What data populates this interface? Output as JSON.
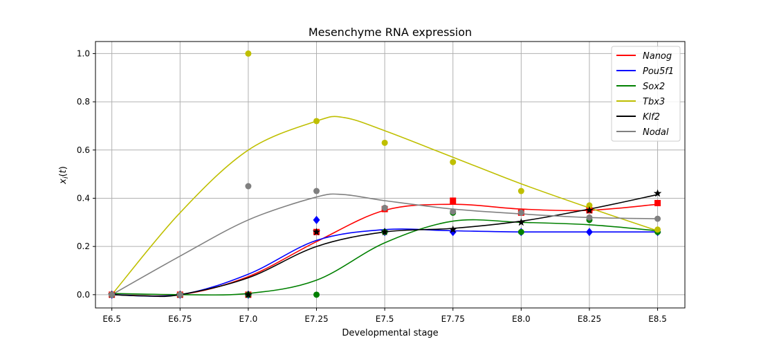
{
  "chart_data": {
    "type": "line",
    "title": "Mesenchyme RNA expression",
    "xlabel": "Developmental stage",
    "ylabel": "x_i(t)",
    "categories": [
      "E6.5",
      "E6.75",
      "E7.0",
      "E7.25",
      "E7.5",
      "E7.75",
      "E8.0",
      "E8.25",
      "E8.5"
    ],
    "x": [
      6.5,
      6.75,
      7.0,
      7.25,
      7.5,
      7.75,
      8.0,
      8.25,
      8.5
    ],
    "yticks": [
      "0.0",
      "0.2",
      "0.4",
      "0.6",
      "0.8",
      "1.0"
    ],
    "ylim": [
      -0.055,
      1.05
    ],
    "xlim": [
      6.44,
      8.6
    ],
    "grid": true,
    "legend_position": "top-right",
    "series": [
      {
        "name": "Nanog",
        "color": "#ff0000",
        "marker": "square",
        "points": [
          [
            6.5,
            0.0
          ],
          [
            6.75,
            0.0
          ],
          [
            7.0,
            0.0
          ],
          [
            7.25,
            0.26
          ],
          [
            7.5,
            0.355
          ],
          [
            7.75,
            0.39
          ],
          [
            8.0,
            0.34
          ],
          [
            8.25,
            0.35
          ],
          [
            8.5,
            0.38
          ]
        ],
        "curve": [
          [
            6.5,
            0.0
          ],
          [
            6.75,
            0.0
          ],
          [
            7.0,
            0.075
          ],
          [
            7.25,
            0.22
          ],
          [
            7.5,
            0.35
          ],
          [
            7.75,
            0.375
          ],
          [
            8.0,
            0.355
          ],
          [
            8.25,
            0.35
          ],
          [
            8.5,
            0.375
          ]
        ]
      },
      {
        "name": "Pou5f1",
        "color": "#0000ff",
        "marker": "diamond",
        "points": [
          [
            6.5,
            0.0
          ],
          [
            6.75,
            0.0
          ],
          [
            7.0,
            0.0
          ],
          [
            7.25,
            0.31
          ],
          [
            7.5,
            0.26
          ],
          [
            7.75,
            0.26
          ],
          [
            8.0,
            0.26
          ],
          [
            8.25,
            0.26
          ],
          [
            8.5,
            0.26
          ]
        ],
        "curve": [
          [
            6.5,
            0.0
          ],
          [
            6.75,
            0.0
          ],
          [
            7.0,
            0.085
          ],
          [
            7.25,
            0.225
          ],
          [
            7.5,
            0.27
          ],
          [
            7.75,
            0.265
          ],
          [
            8.0,
            0.26
          ],
          [
            8.25,
            0.26
          ],
          [
            8.5,
            0.26
          ]
        ]
      },
      {
        "name": "Sox2",
        "color": "#008000",
        "marker": "circle",
        "points": [
          [
            6.5,
            0.0
          ],
          [
            6.75,
            0.0
          ],
          [
            7.0,
            0.0
          ],
          [
            7.25,
            0.0
          ],
          [
            7.5,
            0.26
          ],
          [
            7.75,
            0.34
          ],
          [
            8.0,
            0.26
          ],
          [
            8.25,
            0.31
          ],
          [
            8.5,
            0.26
          ]
        ],
        "curve": [
          [
            6.5,
            0.005
          ],
          [
            6.75,
            0.0
          ],
          [
            7.0,
            0.005
          ],
          [
            7.25,
            0.06
          ],
          [
            7.5,
            0.215
          ],
          [
            7.75,
            0.305
          ],
          [
            8.0,
            0.3
          ],
          [
            8.25,
            0.29
          ],
          [
            8.5,
            0.265
          ]
        ]
      },
      {
        "name": "Tbx3",
        "color": "#bfbf00",
        "marker": "circle",
        "points": [
          [
            6.5,
            0.0
          ],
          [
            6.75,
            0.0
          ],
          [
            7.0,
            1.0
          ],
          [
            7.25,
            0.72
          ],
          [
            7.5,
            0.63
          ],
          [
            7.75,
            0.55
          ],
          [
            8.0,
            0.43
          ],
          [
            8.25,
            0.37
          ],
          [
            8.5,
            0.27
          ]
        ],
        "curve": [
          [
            6.5,
            0.0
          ],
          [
            6.75,
            0.34
          ],
          [
            7.0,
            0.6
          ],
          [
            7.25,
            0.72
          ],
          [
            7.35,
            0.735
          ],
          [
            7.5,
            0.68
          ],
          [
            7.75,
            0.57
          ],
          [
            8.0,
            0.46
          ],
          [
            8.25,
            0.36
          ],
          [
            8.5,
            0.265
          ]
        ]
      },
      {
        "name": "Klf2",
        "color": "#000000",
        "marker": "star",
        "points": [
          [
            6.5,
            0.0
          ],
          [
            6.75,
            0.0
          ],
          [
            7.0,
            0.0
          ],
          [
            7.25,
            0.26
          ],
          [
            7.5,
            0.26
          ],
          [
            7.75,
            0.27
          ],
          [
            8.0,
            0.3
          ],
          [
            8.25,
            0.35
          ],
          [
            8.5,
            0.42
          ]
        ],
        "curve": [
          [
            6.5,
            0.0
          ],
          [
            6.62,
            -0.005
          ],
          [
            6.75,
            0.0
          ],
          [
            7.0,
            0.07
          ],
          [
            7.25,
            0.2
          ],
          [
            7.5,
            0.26
          ],
          [
            7.75,
            0.275
          ],
          [
            8.0,
            0.305
          ],
          [
            8.25,
            0.355
          ],
          [
            8.5,
            0.415
          ]
        ]
      },
      {
        "name": "Nodal",
        "color": "#808080",
        "marker": "circle",
        "points": [
          [
            6.5,
            0.0
          ],
          [
            6.75,
            0.0
          ],
          [
            7.0,
            0.45
          ],
          [
            7.25,
            0.43
          ],
          [
            7.5,
            0.36
          ],
          [
            7.75,
            0.345
          ],
          [
            8.0,
            0.34
          ],
          [
            8.25,
            0.32
          ],
          [
            8.5,
            0.315
          ]
        ],
        "curve": [
          [
            6.5,
            0.0
          ],
          [
            6.75,
            0.16
          ],
          [
            7.0,
            0.31
          ],
          [
            7.25,
            0.405
          ],
          [
            7.35,
            0.415
          ],
          [
            7.5,
            0.39
          ],
          [
            7.75,
            0.355
          ],
          [
            8.0,
            0.335
          ],
          [
            8.25,
            0.32
          ],
          [
            8.5,
            0.315
          ]
        ]
      }
    ]
  }
}
